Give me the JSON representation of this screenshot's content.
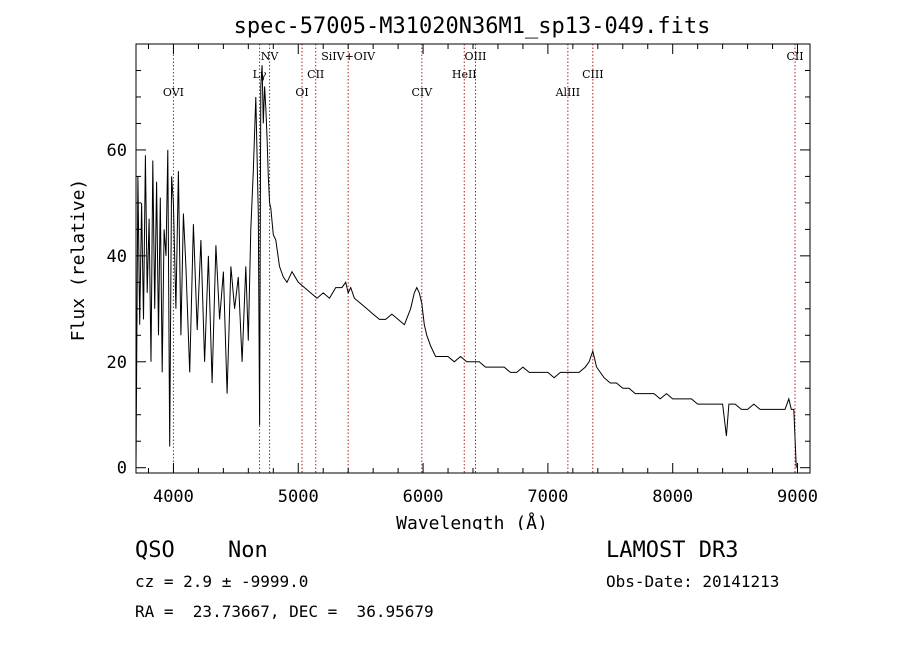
{
  "chart_data": {
    "type": "line",
    "title": "spec-57005-M31020N36M1_sp13-049.fits",
    "xlabel": "Wavelength (Å)",
    "ylabel": "Flux (relative)",
    "xlim": [
      3700,
      9100
    ],
    "ylim": [
      -1,
      80
    ],
    "xticks": [
      {
        "value": 4000,
        "label": "4000"
      },
      {
        "value": 5000,
        "label": "5000"
      },
      {
        "value": 6000,
        "label": "6000"
      },
      {
        "value": 7000,
        "label": "7000"
      },
      {
        "value": 8000,
        "label": "8000"
      },
      {
        "value": 9000,
        "label": "9000"
      }
    ],
    "yticks": [
      {
        "value": 0,
        "label": "0"
      },
      {
        "value": 20,
        "label": "20"
      },
      {
        "value": 40,
        "label": "40"
      },
      {
        "value": 60,
        "label": "60"
      }
    ],
    "grid": false,
    "line_color": "#000000",
    "marker_color": "#b22222",
    "series": [
      {
        "x": [
          3700,
          3715,
          3730,
          3745,
          3760,
          3775,
          3790,
          3805,
          3820,
          3835,
          3850,
          3865,
          3880,
          3895,
          3910,
          3925,
          3940,
          3955,
          3970,
          3985,
          4000,
          4020,
          4040,
          4060,
          4080,
          4100,
          4130,
          4160,
          4190,
          4220,
          4250,
          4280,
          4310,
          4340,
          4370,
          4400,
          4430,
          4460,
          4490,
          4520,
          4550,
          4580,
          4600,
          4620,
          4640,
          4660,
          4680,
          4690,
          4700,
          4710,
          4720,
          4730,
          4740,
          4750,
          4760,
          4770,
          4780,
          4800,
          4820,
          4850,
          4880,
          4910,
          4950,
          5000,
          5050,
          5100,
          5150,
          5200,
          5250,
          5300,
          5350,
          5380,
          5400,
          5420,
          5450,
          5500,
          5550,
          5600,
          5650,
          5700,
          5750,
          5800,
          5850,
          5900,
          5930,
          5950,
          5970,
          5990,
          6010,
          6030,
          6060,
          6100,
          6150,
          6200,
          6250,
          6300,
          6350,
          6400,
          6450,
          6500,
          6550,
          6600,
          6650,
          6700,
          6750,
          6800,
          6850,
          6900,
          6950,
          7000,
          7050,
          7100,
          7150,
          7200,
          7250,
          7300,
          7330,
          7360,
          7390,
          7420,
          7450,
          7500,
          7550,
          7600,
          7650,
          7700,
          7750,
          7800,
          7850,
          7900,
          7950,
          8000,
          8050,
          8100,
          8150,
          8200,
          8250,
          8300,
          8350,
          8400,
          8430,
          8450,
          8500,
          8550,
          8600,
          8650,
          8700,
          8750,
          8800,
          8850,
          8900,
          8930,
          8950,
          8970,
          8990
        ],
        "y": [
          0,
          55,
          27,
          50,
          28,
          59,
          33,
          47,
          20,
          58,
          30,
          54,
          25,
          51,
          18,
          45,
          40,
          60,
          4,
          55,
          50,
          30,
          56,
          25,
          48,
          38,
          18,
          46,
          26,
          43,
          20,
          40,
          16,
          42,
          28,
          37,
          14,
          38,
          30,
          36,
          20,
          38,
          24,
          45,
          56,
          70,
          48,
          8,
          72,
          76,
          65,
          72,
          68,
          62,
          55,
          50,
          49,
          44,
          43,
          38,
          36,
          35,
          37,
          35,
          34,
          33,
          32,
          33,
          32,
          34,
          34,
          35,
          33,
          34,
          32,
          31,
          30,
          29,
          28,
          28,
          29,
          28,
          27,
          30,
          33,
          34,
          33,
          31,
          27,
          25,
          23,
          21,
          21,
          21,
          20,
          21,
          20,
          20,
          20,
          19,
          19,
          19,
          19,
          18,
          18,
          19,
          18,
          18,
          18,
          18,
          17,
          18,
          18,
          18,
          18,
          19,
          20,
          22,
          19,
          18,
          17,
          16,
          16,
          15,
          15,
          14,
          14,
          14,
          14,
          13,
          14,
          13,
          13,
          13,
          13,
          12,
          12,
          12,
          12,
          12,
          6,
          12,
          12,
          11,
          11,
          12,
          11,
          11,
          11,
          11,
          11,
          13,
          11,
          11,
          0
        ]
      }
    ],
    "annotations": [
      {
        "label": "OVI",
        "x": 4000,
        "level": 1
      },
      {
        "label": "Lγ",
        "x": 4690,
        "level": 3
      },
      {
        "label": "NV",
        "x": 4770,
        "level": 5
      },
      {
        "label": "OI",
        "x": 5030,
        "level": 1
      },
      {
        "label": "CII",
        "x": 5140,
        "level": 3
      },
      {
        "label": "SiIV+OIV",
        "x": 5400,
        "level": 5
      },
      {
        "label": "CIV",
        "x": 5990,
        "level": 1
      },
      {
        "label": "HeII",
        "x": 6330,
        "level": 3
      },
      {
        "label": "OIII",
        "x": 6420,
        "level": 5
      },
      {
        "label": "AlIII",
        "x": 7160,
        "level": 1
      },
      {
        "label": "CIII",
        "x": 7360,
        "level": 3
      },
      {
        "label": "CII",
        "x": 8980,
        "level": 5
      }
    ]
  },
  "info": {
    "class": "QSO",
    "subclass": "Non",
    "cz": "cz = 2.9 ± -9999.0",
    "coords": "RA =  23.73667, DEC =  36.95679",
    "survey": "LAMOST DR3",
    "obs_date": "Obs-Date: 20141213"
  }
}
